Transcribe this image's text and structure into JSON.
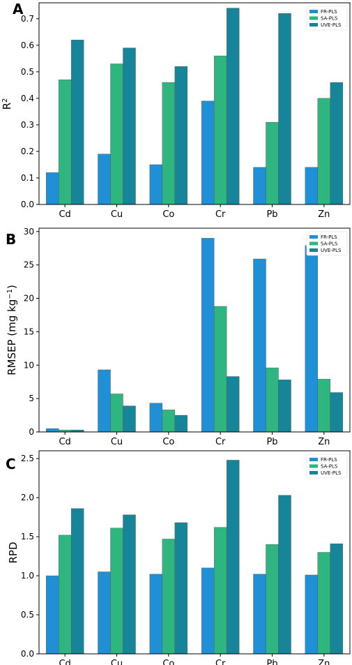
{
  "chart_data": [
    {
      "panel": "A",
      "type": "bar",
      "categories": [
        "Cd",
        "Cu",
        "Co",
        "Cr",
        "Pb",
        "Zn"
      ],
      "series": [
        {
          "name": "FR-PLS",
          "values": [
            0.12,
            0.19,
            0.15,
            0.39,
            0.14,
            0.14
          ]
        },
        {
          "name": "SA-PLS",
          "values": [
            0.47,
            0.53,
            0.46,
            0.56,
            0.31,
            0.4
          ]
        },
        {
          "name": "UVE-PLS",
          "values": [
            0.62,
            0.59,
            0.52,
            0.74,
            0.72,
            0.46
          ]
        }
      ],
      "ylabel_main": "R",
      "ylabel_sup": "2",
      "ylabel_end": "",
      "ylim": [
        0,
        0.76
      ],
      "yticks": [
        0.0,
        0.1,
        0.2,
        0.3,
        0.4,
        0.5,
        0.6,
        0.7
      ],
      "ytick_labels": [
        "0.0",
        "0.1",
        "0.2",
        "0.3",
        "0.4",
        "0.5",
        "0.6",
        "0.7"
      ],
      "legend_position": "top-right"
    },
    {
      "panel": "B",
      "type": "bar",
      "categories": [
        "Cd",
        "Cu",
        "Co",
        "Cr",
        "Pb",
        "Zn"
      ],
      "series": [
        {
          "name": "FR-PLS",
          "values": [
            0.5,
            9.3,
            4.3,
            29.0,
            25.9,
            27.9
          ]
        },
        {
          "name": "SA-PLS",
          "values": [
            0.3,
            5.7,
            3.3,
            18.8,
            9.6,
            7.9
          ]
        },
        {
          "name": "UVE-PLS",
          "values": [
            0.3,
            3.9,
            2.5,
            8.3,
            7.8,
            5.9
          ]
        }
      ],
      "ylabel_main": "RMSEP (mg kg",
      "ylabel_sup": "−1",
      "ylabel_end": ")",
      "ylim": [
        0,
        30.5
      ],
      "yticks": [
        0,
        5,
        10,
        15,
        20,
        25,
        30
      ],
      "ytick_labels": [
        "0",
        "5",
        "10",
        "15",
        "20",
        "25",
        "30"
      ],
      "legend_position": "top-right"
    },
    {
      "panel": "C",
      "type": "bar",
      "categories": [
        "Cd",
        "Cu",
        "Co",
        "Cr",
        "Pb",
        "Zn"
      ],
      "series": [
        {
          "name": "FR-PLS",
          "values": [
            1.0,
            1.05,
            1.02,
            1.1,
            1.02,
            1.01
          ]
        },
        {
          "name": "SA-PLS",
          "values": [
            1.52,
            1.61,
            1.47,
            1.62,
            1.4,
            1.3
          ]
        },
        {
          "name": "UVE-PLS",
          "values": [
            1.86,
            1.78,
            1.68,
            2.48,
            2.03,
            1.41
          ]
        }
      ],
      "ylabel_main": "RPD",
      "ylabel_sup": "",
      "ylabel_end": "",
      "ylim": [
        0,
        2.6
      ],
      "yticks": [
        0.0,
        0.5,
        1.0,
        1.5,
        2.0,
        2.5
      ],
      "ytick_labels": [
        "0.0",
        "0.5",
        "1.0",
        "1.5",
        "2.0",
        "2.5"
      ],
      "legend_position": "top-right"
    }
  ],
  "colors": [
    "#1f8fd6",
    "#2eb580",
    "#16859a"
  ]
}
